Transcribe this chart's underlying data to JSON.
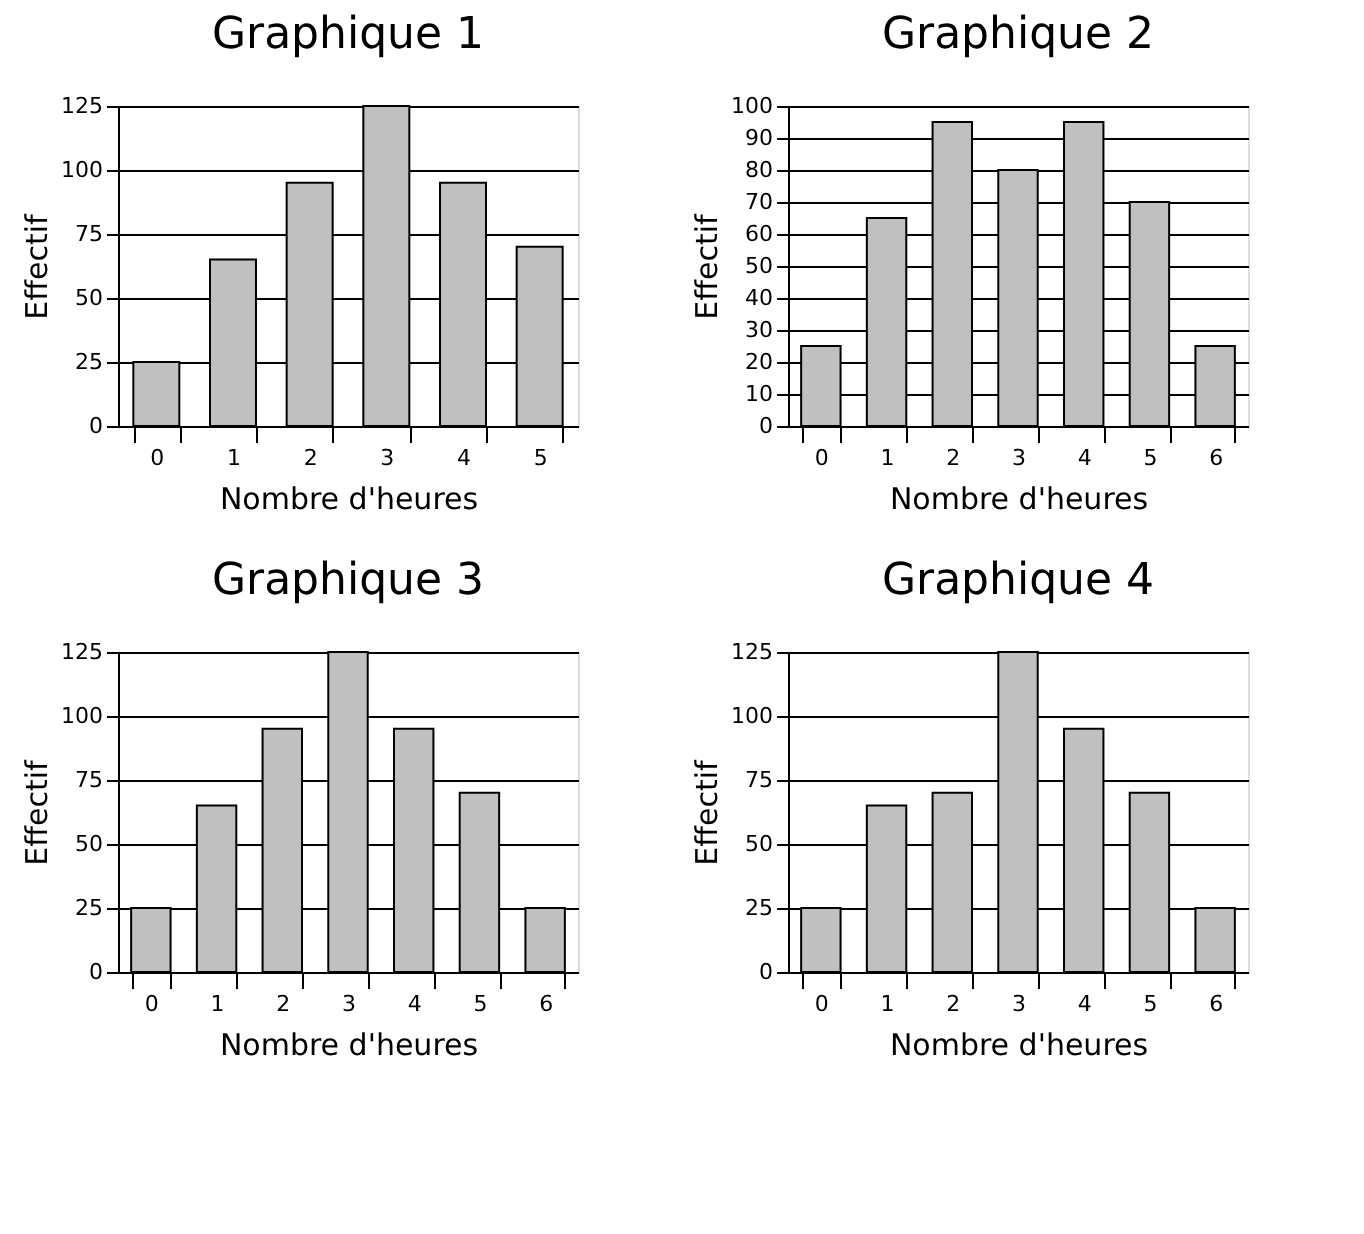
{
  "chart_data": [
    {
      "type": "bar",
      "title": "Graphique 1",
      "xlabel": "Nombre d'heures",
      "ylabel": "Effectif",
      "categories": [
        "0",
        "1",
        "2",
        "3",
        "4",
        "5"
      ],
      "values": [
        25,
        65,
        95,
        125,
        95,
        70
      ],
      "color": "#c0c0c0",
      "ylim": [
        0,
        125
      ],
      "yticks": [
        0,
        25,
        50,
        75,
        100,
        125
      ],
      "grid": "y"
    },
    {
      "type": "bar",
      "title": "Graphique 2",
      "xlabel": "Nombre d'heures",
      "ylabel": "Effectif",
      "categories": [
        "0",
        "1",
        "2",
        "3",
        "4",
        "5",
        "6"
      ],
      "values": [
        25,
        65,
        95,
        80,
        95,
        70,
        25
      ],
      "color": "#c0c0c0",
      "ylim": [
        0,
        100
      ],
      "yticks": [
        0,
        10,
        20,
        30,
        40,
        50,
        60,
        70,
        80,
        90,
        100
      ],
      "grid": "y"
    },
    {
      "type": "bar",
      "title": "Graphique 3",
      "xlabel": "Nombre d'heures",
      "ylabel": "Effectif",
      "categories": [
        "0",
        "1",
        "2",
        "3",
        "4",
        "5",
        "6"
      ],
      "values": [
        25,
        65,
        95,
        125,
        95,
        70,
        25
      ],
      "color": "#c0c0c0",
      "ylim": [
        0,
        125
      ],
      "yticks": [
        0,
        25,
        50,
        75,
        100,
        125
      ],
      "grid": "y"
    },
    {
      "type": "bar",
      "title": "Graphique 4",
      "xlabel": "Nombre d'heures",
      "ylabel": "Effectif",
      "categories": [
        "0",
        "1",
        "2",
        "3",
        "4",
        "5",
        "6"
      ],
      "values": [
        25,
        65,
        70,
        125,
        95,
        70,
        25
      ],
      "color": "#c0c0c0",
      "ylim": [
        0,
        125
      ],
      "yticks": [
        0,
        25,
        50,
        75,
        100,
        125
      ],
      "grid": "y"
    }
  ]
}
